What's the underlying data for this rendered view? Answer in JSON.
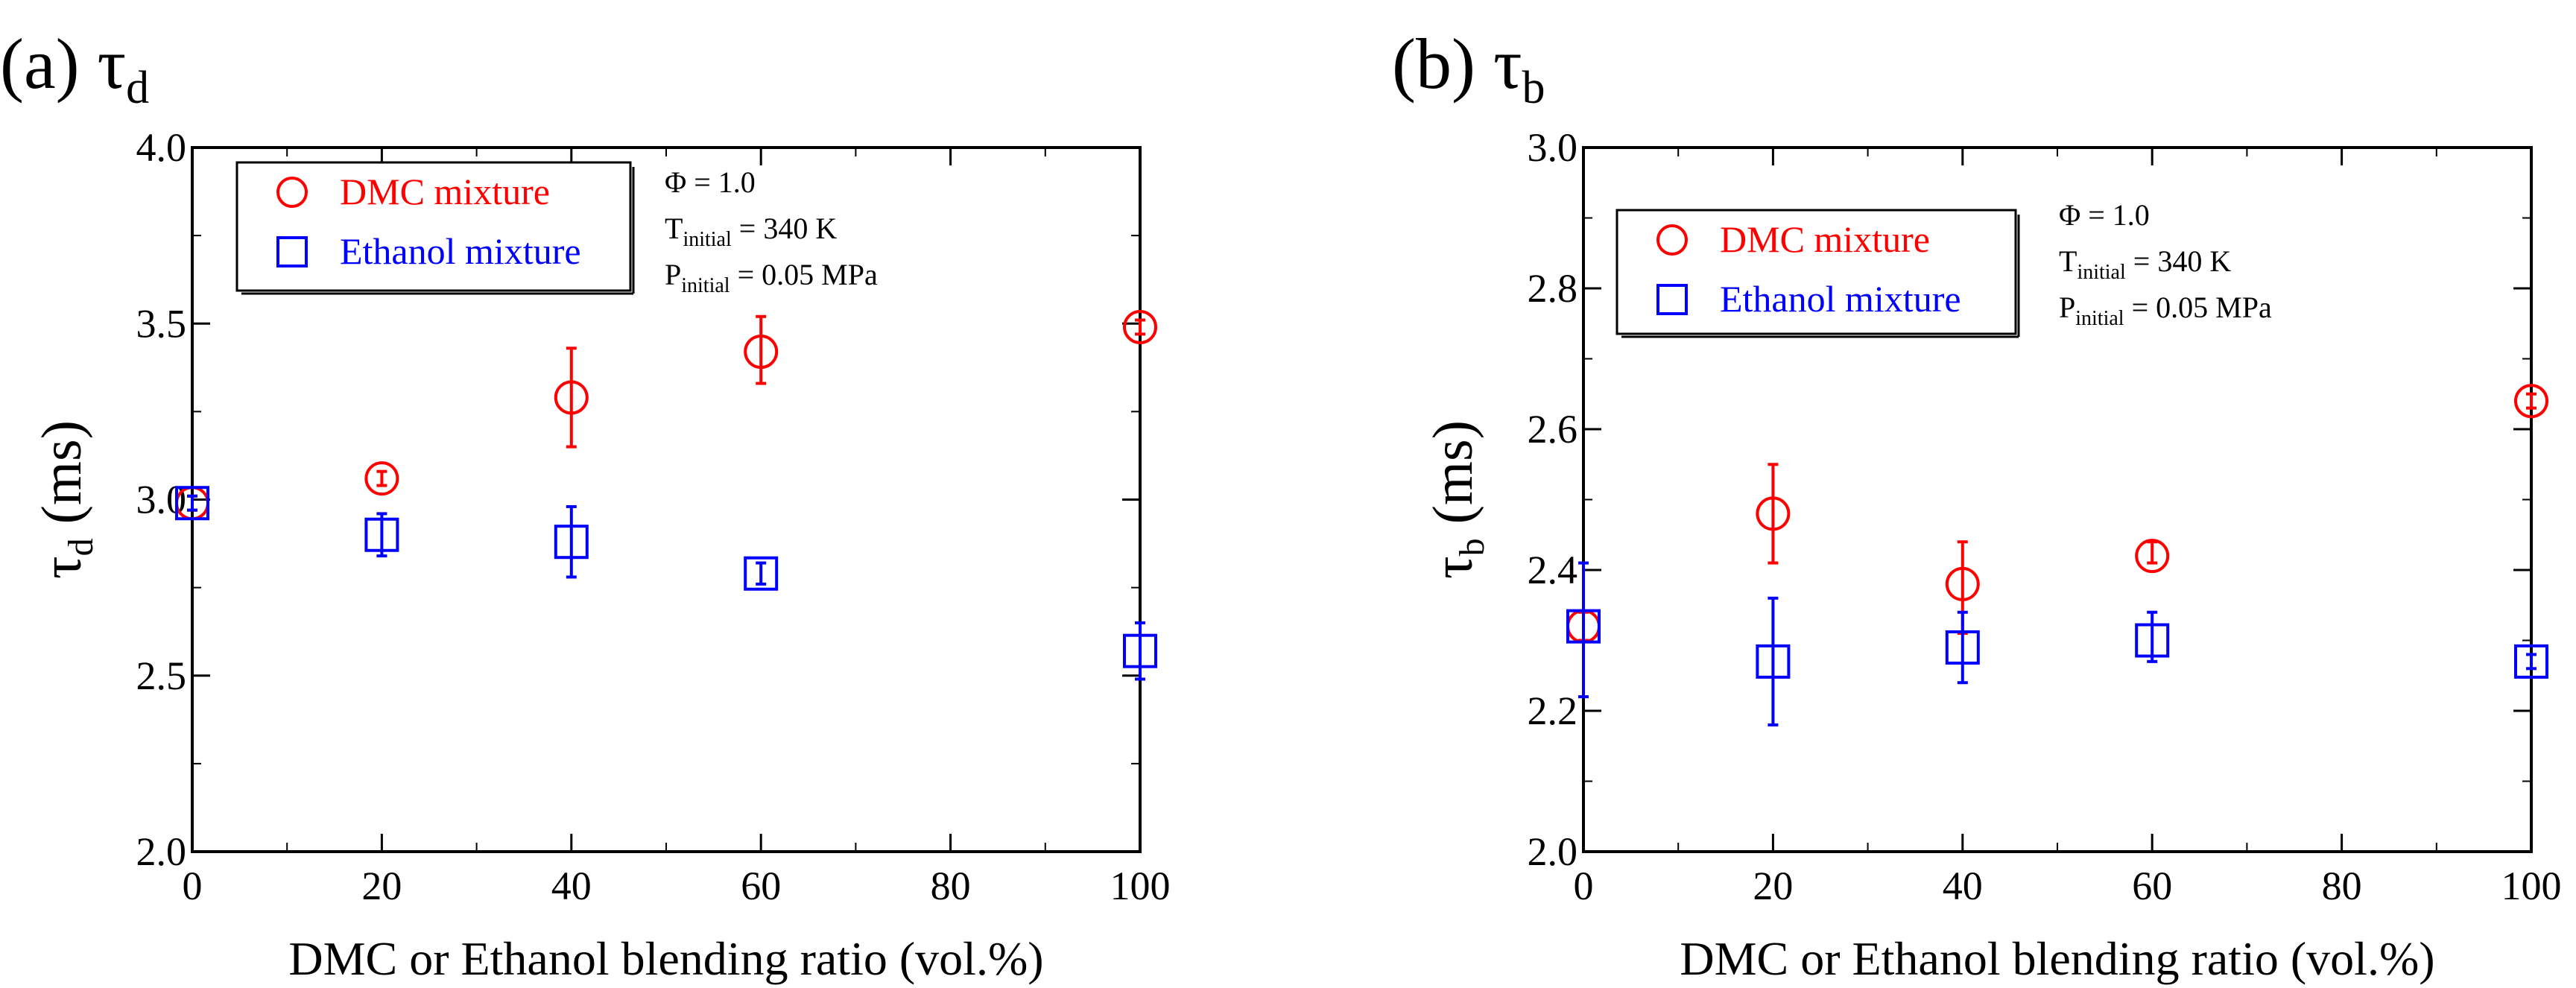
{
  "chart_data": [
    {
      "type": "scatter",
      "panel_label": "(a)",
      "title_symbol": "τ",
      "title_subscript": "d",
      "xlabel": "DMC or Ethanol blending ratio (vol.%)",
      "ylabel_symbol": "τ",
      "ylabel_subscript": "d",
      "ylabel_unit": "(ms)",
      "xlim": [
        0,
        100
      ],
      "ylim": [
        2.0,
        4.0
      ],
      "xticks": [
        0,
        20,
        40,
        60,
        80,
        100
      ],
      "yticks": [
        2.0,
        2.5,
        3.0,
        3.5,
        4.0
      ],
      "xtick_labels": [
        "0",
        "20",
        "40",
        "60",
        "80",
        "100"
      ],
      "ytick_labels": [
        "2.0",
        "2.5",
        "3.0",
        "3.5",
        "4.0"
      ],
      "series": [
        {
          "name": "DMC mixture",
          "marker": "circle",
          "color": "#ff0000",
          "x": [
            0,
            20,
            40,
            60,
            100
          ],
          "y": [
            2.99,
            3.06,
            3.29,
            3.42,
            3.49
          ],
          "err_low": [
            2.97,
            3.04,
            3.15,
            3.33,
            3.47
          ],
          "err_high": [
            3.01,
            3.08,
            3.43,
            3.52,
            3.51
          ]
        },
        {
          "name": "Ethanol mixture",
          "marker": "square",
          "color": "#0000ff",
          "x": [
            0,
            20,
            40,
            60,
            100
          ],
          "y": [
            2.99,
            2.9,
            2.88,
            2.79,
            2.57
          ],
          "err_low": [
            2.97,
            2.84,
            2.78,
            2.76,
            2.49
          ],
          "err_high": [
            3.01,
            2.96,
            2.98,
            2.82,
            2.65
          ]
        }
      ],
      "legend": [
        "DMC mixture",
        "Ethanol mixture"
      ],
      "annotation": {
        "phi_line": "Φ = 1.0",
        "t_symbol": "T",
        "t_sub": "initial",
        "t_value": " = 340 K",
        "p_symbol": "P",
        "p_sub": "initial",
        "p_value": " = 0.05 MPa"
      }
    },
    {
      "type": "scatter",
      "panel_label": "(b)",
      "title_symbol": "τ",
      "title_subscript": "b",
      "xlabel": "DMC or Ethanol blending ratio (vol.%)",
      "ylabel_symbol": "τ",
      "ylabel_subscript": "b",
      "ylabel_unit": "(ms)",
      "xlim": [
        0,
        100
      ],
      "ylim": [
        2.0,
        3.0
      ],
      "xticks": [
        0,
        20,
        40,
        60,
        80,
        100
      ],
      "yticks": [
        2.0,
        2.2,
        2.4,
        2.6,
        2.8,
        3.0
      ],
      "xtick_labels": [
        "0",
        "20",
        "40",
        "60",
        "80",
        "100"
      ],
      "ytick_labels": [
        "2.0",
        "2.2",
        "2.4",
        "2.6",
        "2.8",
        "3.0"
      ],
      "series": [
        {
          "name": "DMC mixture",
          "marker": "circle",
          "color": "#ff0000",
          "x": [
            0,
            20,
            40,
            60,
            100
          ],
          "y": [
            2.32,
            2.48,
            2.38,
            2.42,
            2.64
          ],
          "err_low": [
            2.3,
            2.41,
            2.31,
            2.41,
            2.63
          ],
          "err_high": [
            2.34,
            2.55,
            2.44,
            2.44,
            2.65
          ]
        },
        {
          "name": "Ethanol mixture",
          "marker": "square",
          "color": "#0000ff",
          "x": [
            0,
            20,
            40,
            60,
            100
          ],
          "y": [
            2.32,
            2.27,
            2.29,
            2.3,
            2.27
          ],
          "err_low": [
            2.22,
            2.18,
            2.24,
            2.27,
            2.26
          ],
          "err_high": [
            2.41,
            2.36,
            2.34,
            2.34,
            2.28
          ]
        }
      ],
      "legend": [
        "DMC mixture",
        "Ethanol mixture"
      ],
      "annotation": {
        "phi_line": "Φ = 1.0",
        "t_symbol": "T",
        "t_sub": "initial",
        "t_value": " = 340 K",
        "p_symbol": "P",
        "p_sub": "initial",
        "p_value": " = 0.05 MPa"
      }
    }
  ]
}
